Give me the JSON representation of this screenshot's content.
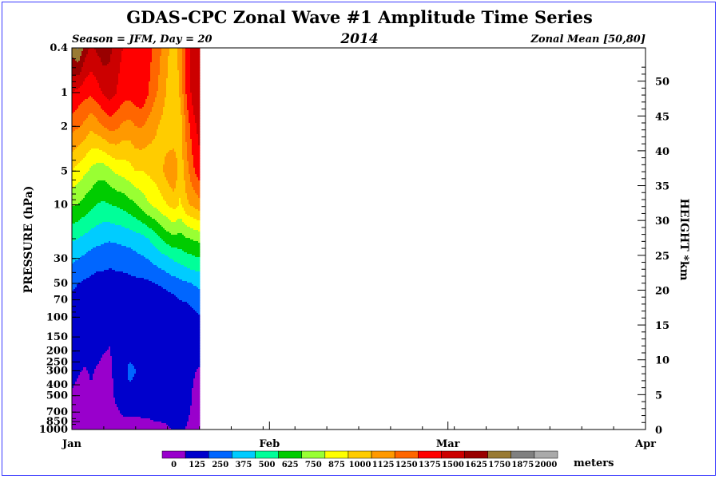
{
  "chart_data": {
    "type": "heatmap",
    "title": "GDAS-CPC Zonal Wave #1 Amplitude Time Series",
    "subtitle_left": "Season = JFM, Day =  20",
    "subtitle_center": "2014",
    "subtitle_right": "Zonal Mean [50,80]",
    "ylabel_left": "PRESSURE (hPa)",
    "ylabel_right": "HEIGHT *km",
    "units": "meters",
    "x_tick_labels": [
      "Jan",
      "Feb",
      "Mar",
      "Apr"
    ],
    "x_tick_days": [
      0,
      31,
      59,
      90
    ],
    "x_range_days": [
      0,
      90
    ],
    "y_scale": "log-pressure",
    "pressure_range_hpa": [
      1000,
      0.4
    ],
    "pressure_ticks": [
      "0.4",
      "1",
      "2",
      "5",
      "10",
      "30",
      "50",
      "70",
      "100",
      "150",
      "200",
      "250",
      "300",
      "400",
      "500",
      "700",
      "850",
      "1000"
    ],
    "height_ticks": [
      "0",
      "5",
      "10",
      "15",
      "20",
      "25",
      "30",
      "35",
      "40",
      "45",
      "50"
    ],
    "levels": [
      0,
      125,
      250,
      375,
      500,
      625,
      750,
      875,
      1000,
      1125,
      1250,
      1375,
      1500,
      1625,
      1750,
      1875,
      2000
    ],
    "level_colors": [
      "#9900cc",
      "#0000cc",
      "#0066ff",
      "#00ccff",
      "#00ff99",
      "#00cc00",
      "#99ff33",
      "#ffff00",
      "#ffcc00",
      "#ff9900",
      "#ff6600",
      "#ff0000",
      "#cc0000",
      "#990000",
      "#997a33",
      "#808080",
      "#aaaaaa"
    ],
    "data_days": [
      0,
      1,
      2,
      3,
      4,
      5,
      6,
      7,
      8,
      9,
      10,
      11,
      12,
      13,
      14,
      15,
      16,
      17,
      18,
      19,
      20
    ],
    "data_pressures_hpa": [
      1000,
      500,
      300,
      150,
      100,
      70,
      50,
      30,
      20,
      10,
      5,
      2,
      1,
      0.4
    ],
    "amplitude_m": [
      [
        90,
        80,
        90,
        100,
        90,
        80,
        70,
        60,
        60,
        60,
        50,
        70,
        80,
        100,
        110,
        120,
        130,
        140,
        120,
        110,
        100
      ],
      [
        120,
        110,
        110,
        120,
        110,
        100,
        90,
        150,
        220,
        240,
        240,
        230,
        220,
        200,
        180,
        160,
        150,
        200,
        150,
        120,
        110
      ],
      [
        140,
        130,
        120,
        130,
        120,
        110,
        110,
        160,
        230,
        260,
        250,
        240,
        240,
        220,
        170,
        150,
        130,
        220,
        160,
        130,
        120
      ],
      [
        180,
        170,
        160,
        160,
        150,
        140,
        130,
        170,
        200,
        220,
        230,
        210,
        190,
        170,
        160,
        160,
        170,
        180,
        170,
        160,
        170
      ],
      [
        200,
        190,
        170,
        170,
        160,
        150,
        140,
        150,
        150,
        150,
        150,
        140,
        140,
        150,
        160,
        170,
        190,
        200,
        200,
        210,
        240
      ],
      [
        230,
        220,
        200,
        190,
        180,
        170,
        160,
        160,
        150,
        150,
        150,
        140,
        140,
        150,
        170,
        190,
        220,
        250,
        260,
        290,
        330
      ],
      [
        270,
        250,
        230,
        220,
        200,
        200,
        190,
        200,
        200,
        210,
        220,
        220,
        230,
        250,
        270,
        300,
        320,
        340,
        360,
        380,
        400
      ],
      [
        400,
        380,
        350,
        320,
        300,
        300,
        290,
        300,
        310,
        320,
        340,
        360,
        380,
        420,
        450,
        480,
        520,
        550,
        580,
        600,
        620
      ],
      [
        520,
        500,
        470,
        440,
        420,
        400,
        390,
        400,
        410,
        420,
        440,
        460,
        500,
        560,
        620,
        680,
        720,
        700,
        740,
        760,
        780
      ],
      [
        760,
        740,
        700,
        660,
        620,
        600,
        620,
        640,
        660,
        700,
        740,
        800,
        860,
        900,
        950,
        1000,
        1050,
        980,
        1100,
        1150,
        1200
      ],
      [
        1000,
        950,
        900,
        850,
        800,
        800,
        850,
        900,
        920,
        950,
        1000,
        1000,
        1020,
        1050,
        1100,
        1180,
        1250,
        1050,
        1200,
        1350,
        1450
      ],
      [
        1300,
        1260,
        1220,
        1150,
        1200,
        1250,
        1300,
        1280,
        1220,
        1200,
        1250,
        1260,
        1200,
        1150,
        1100,
        1050,
        1000,
        1050,
        1300,
        1450,
        1550
      ],
      [
        1500,
        1460,
        1420,
        1400,
        1450,
        1520,
        1560,
        1500,
        1440,
        1420,
        1460,
        1480,
        1380,
        1280,
        1200,
        1100,
        1000,
        1150,
        1400,
        1550,
        1600
      ],
      [
        1800,
        1900,
        1700,
        1600,
        1650,
        1700,
        1650,
        1550,
        1500,
        1480,
        1500,
        1480,
        1420,
        1350,
        1250,
        1150,
        1050,
        1200,
        1400,
        1550,
        1600
      ]
    ]
  }
}
